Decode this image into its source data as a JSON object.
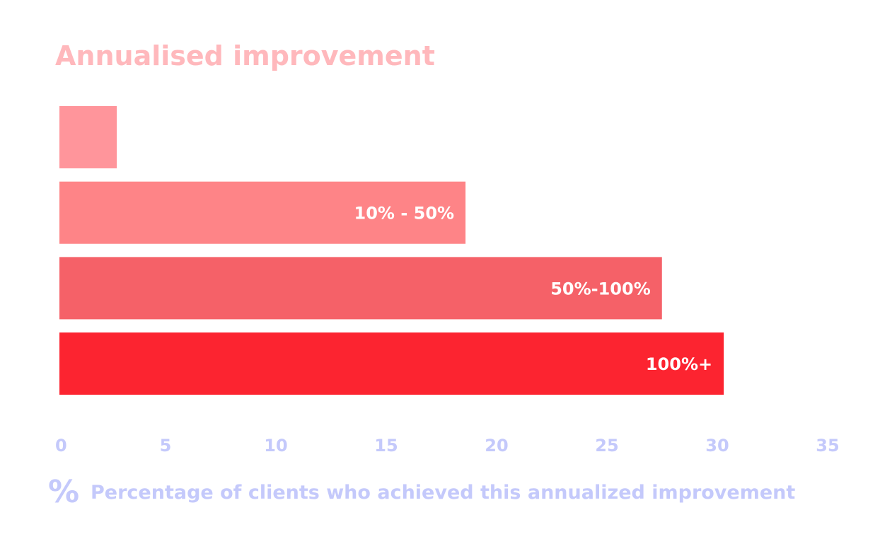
{
  "chart_data": {
    "type": "bar",
    "orientation": "horizontal",
    "title": "Annualised improvement",
    "xlabel": "Percentage of clients who achieved this annualized improvement",
    "ylabel": "",
    "categories": [
      "",
      "10% - 50%",
      "50%-100%",
      "100%+"
    ],
    "values": [
      2.6,
      18.4,
      27.3,
      30.1
    ],
    "xlim": [
      0,
      35
    ],
    "xticks": [
      "0",
      "5",
      "10",
      "15",
      "20",
      "25",
      "30",
      "35"
    ],
    "grid": false,
    "legend": "none"
  },
  "icons": {
    "axis_label_icon": "percent-icon"
  },
  "colors": {
    "title": "#ffb8bc",
    "axis": "#c4c9fb",
    "bars": [
      "#ff959b",
      "#fe8487",
      "#f56168",
      "#fc2430"
    ]
  }
}
